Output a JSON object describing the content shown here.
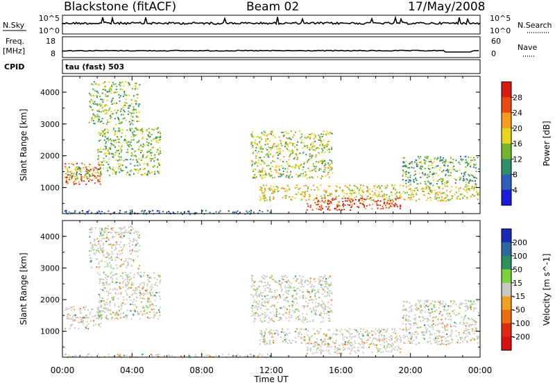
{
  "header": {
    "site": "Blackstone (fitACF)",
    "beam": "Beam 02",
    "date": "17/May/2008"
  },
  "strips": {
    "nsky_label": "N.Sky",
    "nsearch_label": "N.Search",
    "freq_label_1": "Freq.",
    "freq_label_2": "[MHz]",
    "nave_label": "Nave",
    "cpid_label": "CPID",
    "cpid_value": "tau (fast) 503",
    "left_ticks_top": [
      "10^5",
      "10^0"
    ],
    "right_ticks_top": [
      "10^5",
      "10^0"
    ],
    "left_ticks_freq": [
      "18",
      "8"
    ],
    "right_ticks_nave": [
      "60",
      "0"
    ]
  },
  "chart_data": [
    {
      "type": "heatmap",
      "title": "",
      "xlabel": "Time UT",
      "ylabel": "Slant Range [km]",
      "colorbar_label": "Power [dB]",
      "x_ticks": [
        "00:00",
        "04:00",
        "08:00",
        "12:00",
        "16:00",
        "20:00",
        "00:00"
      ],
      "x_range_hours": [
        0,
        24
      ],
      "y_ticks": [
        1000,
        2000,
        3000,
        4000
      ],
      "ylim": [
        180,
        4500
      ],
      "colorbar_ticks": [
        4,
        8,
        12,
        16,
        20,
        24,
        28
      ],
      "colorbar_range": [
        0,
        32
      ],
      "colorbar_colors": [
        "#1a1adc",
        "#2b5fb8",
        "#2f8f6a",
        "#72b62c",
        "#e8d41a",
        "#f59a1a",
        "#e84a12",
        "#d81a12"
      ],
      "echo_regions": [
        {
          "t0": 0.1,
          "t1": 2.2,
          "r0": 1100,
          "r1": 1800,
          "level": 26
        },
        {
          "t0": 0.1,
          "t1": 2.0,
          "r0": 1300,
          "r1": 1700,
          "level": 14
        },
        {
          "t0": 2.0,
          "t1": 5.6,
          "r0": 1400,
          "r1": 2900,
          "level": 14
        },
        {
          "t0": 1.5,
          "t1": 4.4,
          "r0": 3000,
          "r1": 4350,
          "level": 14
        },
        {
          "t0": 10.8,
          "t1": 15.5,
          "r0": 1300,
          "r1": 2800,
          "level": 16
        },
        {
          "t0": 11.3,
          "t1": 23.9,
          "r0": 600,
          "r1": 1100,
          "level": 18
        },
        {
          "t0": 14.0,
          "t1": 19.5,
          "r0": 300,
          "r1": 700,
          "level": 28
        },
        {
          "t0": 19.5,
          "t1": 23.9,
          "r0": 1100,
          "r1": 2000,
          "level": 12
        },
        {
          "t0": 0.0,
          "t1": 12.0,
          "r0": 180,
          "r1": 300,
          "level": 6
        }
      ]
    },
    {
      "type": "heatmap",
      "title": "",
      "xlabel": "Time UT",
      "ylabel": "Slant Range [km]",
      "colorbar_label": "Velocity [m s^-1]",
      "x_ticks": [
        "00:00",
        "04:00",
        "08:00",
        "12:00",
        "16:00",
        "20:00",
        "00:00"
      ],
      "x_range_hours": [
        0,
        24
      ],
      "y_ticks": [
        1000,
        2000,
        3000,
        4000
      ],
      "ylim": [
        180,
        4500
      ],
      "colorbar_ticks": [
        200,
        100,
        50,
        15,
        -15,
        -50,
        -100,
        -200
      ],
      "colorbar_colors": [
        "#1a2ab8",
        "#2b6a9a",
        "#2e8f5e",
        "#7ad23a",
        "#c8c8c0",
        "#f0a020",
        "#f06a10",
        "#e02a10",
        "#d81010"
      ],
      "echo_regions": [
        {
          "t0": 0.1,
          "t1": 2.2,
          "r0": 1100,
          "r1": 1800,
          "level": 0
        },
        {
          "t0": 2.0,
          "t1": 5.6,
          "r0": 1400,
          "r1": 2900,
          "level": 0
        },
        {
          "t0": 1.5,
          "t1": 4.4,
          "r0": 3000,
          "r1": 4350,
          "level": 0
        },
        {
          "t0": 10.8,
          "t1": 15.5,
          "r0": 1300,
          "r1": 2800,
          "level": 0
        },
        {
          "t0": 11.3,
          "t1": 23.9,
          "r0": 600,
          "r1": 1100,
          "level": 0
        },
        {
          "t0": 14.0,
          "t1": 19.5,
          "r0": 300,
          "r1": 700,
          "level": 0
        },
        {
          "t0": 19.5,
          "t1": 23.9,
          "r0": 1100,
          "r1": 2000,
          "level": 0
        },
        {
          "t0": 0.0,
          "t1": 12.0,
          "r0": 180,
          "r1": 300,
          "level": 0
        }
      ]
    }
  ]
}
